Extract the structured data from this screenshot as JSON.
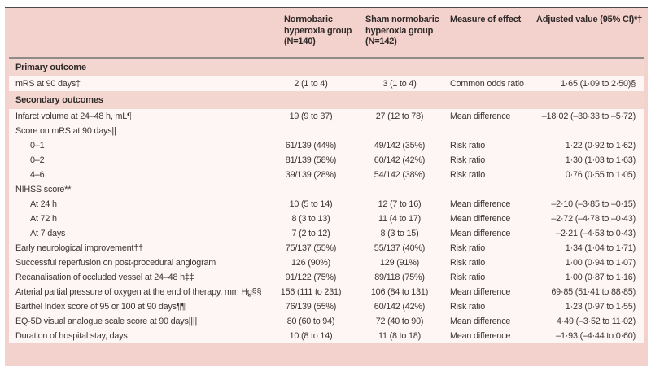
{
  "colors": {
    "table_background_pink": "#f3d1cc",
    "section_band_pink": "#f4d6d1",
    "data_row_background": "#fdf6f4",
    "top_rule": "#4f4a48",
    "header_rule": "#8f8b89",
    "text": "#3a3432"
  },
  "table": {
    "columns": [
      "",
      "Normobaric hyperoxia group (N=140)",
      "Sham normobaric hyperoxia group (N=142)",
      "Measure of effect",
      "Adjusted value (95% CI)*†"
    ],
    "rows": [
      {
        "type": "section",
        "label": "Primary outcome"
      },
      {
        "type": "data",
        "label": "mRS at 90 days‡",
        "v1": "2 (1 to 4)",
        "v2": "3 (1 to 4)",
        "measure": "Common odds ratio",
        "adjusted": "1·65 (1·09 to 2·50)§"
      },
      {
        "type": "section",
        "label": "Secondary outcomes"
      },
      {
        "type": "data",
        "label": "Infarct volume at 24–48 h, mL¶",
        "v1": "19 (9 to 37)",
        "v2": "27 (12 to 78)",
        "measure": "Mean difference",
        "adjusted": "–18·02 (–30·33 to –5·72)"
      },
      {
        "type": "data",
        "label": "Score on mRS at 90 days||",
        "v1": "",
        "v2": "",
        "measure": "",
        "adjusted": ""
      },
      {
        "type": "data",
        "indent": true,
        "label": "0–1",
        "v1": "61/139 (44%)",
        "v2": "49/142 (35%)",
        "measure": "Risk ratio",
        "adjusted": "1·22 (0·92 to 1·62)"
      },
      {
        "type": "data",
        "indent": true,
        "label": "0–2",
        "v1": "81/139 (58%)",
        "v2": "60/142 (42%)",
        "measure": "Risk ratio",
        "adjusted": "1·30 (1·03 to 1·63)"
      },
      {
        "type": "data",
        "indent": true,
        "label": "4–6",
        "v1": "39/139 (28%)",
        "v2": "54/142 (38%)",
        "measure": "Risk ratio",
        "adjusted": "0·76 (0·55 to 1·05)"
      },
      {
        "type": "data",
        "label": "NIHSS score**",
        "v1": "",
        "v2": "",
        "measure": "",
        "adjusted": ""
      },
      {
        "type": "data",
        "indent": true,
        "label": "At 24 h",
        "v1": "10 (5 to 14)",
        "v2": "12 (7 to 16)",
        "measure": "Mean difference",
        "adjusted": "–2·10 (–3·85 to –0·15)"
      },
      {
        "type": "data",
        "indent": true,
        "label": "At 72 h",
        "v1": "8 (3 to 13)",
        "v2": "11 (4 to 17)",
        "measure": "Mean difference",
        "adjusted": "–2·72 (–4·78 to –0·43)"
      },
      {
        "type": "data",
        "indent": true,
        "label": "At 7 days",
        "v1": "7 (2 to 12)",
        "v2": "8 (3 to 15)",
        "measure": "Mean difference",
        "adjusted": "–2·21 (–4·53 to 0·43)"
      },
      {
        "type": "data",
        "label": "Early neurological improvement††",
        "v1": "75/137 (55%)",
        "v2": "55/137 (40%)",
        "measure": "Risk ratio",
        "adjusted": "1·34 (1·04 to 1·71)"
      },
      {
        "type": "data",
        "label": "Successful reperfusion on post-procedural angiogram",
        "v1": "126 (90%)",
        "v2": "129 (91%)",
        "measure": "Risk ratio",
        "adjusted": "1·00 (0·94 to 1·07)"
      },
      {
        "type": "data",
        "label": "Recanalisation of occluded vessel at 24–48 h‡‡",
        "v1": "91/122 (75%)",
        "v2": "89/118 (75%)",
        "measure": "Risk ratio",
        "adjusted": "1·00 (0·87 to 1·16)"
      },
      {
        "type": "data",
        "label": "Arterial partial pressure of oxygen at the end of therapy, mm Hg§§",
        "v1": "156 (111 to 231)",
        "v2": "106 (84 to 131)",
        "measure": "Mean difference",
        "adjusted": "69·85 (51·41 to 88·85)"
      },
      {
        "type": "data",
        "label": "Barthel Index score of 95 or 100 at 90 days¶¶",
        "v1": "76/139 (55%)",
        "v2": "60/142 (42%)",
        "measure": "Risk ratio",
        "adjusted": "1·23 (0·97 to 1·55)"
      },
      {
        "type": "data",
        "label": "EQ-5D visual analogue scale score at 90 days||||",
        "v1": "80 (60 to 94)",
        "v2": "72 (40 to 90)",
        "measure": "Mean difference",
        "adjusted": "4·49 (–3·52 to 11·02)"
      },
      {
        "type": "data",
        "label": "Duration of hospital stay, days",
        "v1": "10 (8 to 14)",
        "v2": "11 (8 to 18)",
        "measure": "Mean difference",
        "adjusted": "–1·93 (–4·44 to 0·60)"
      }
    ]
  }
}
